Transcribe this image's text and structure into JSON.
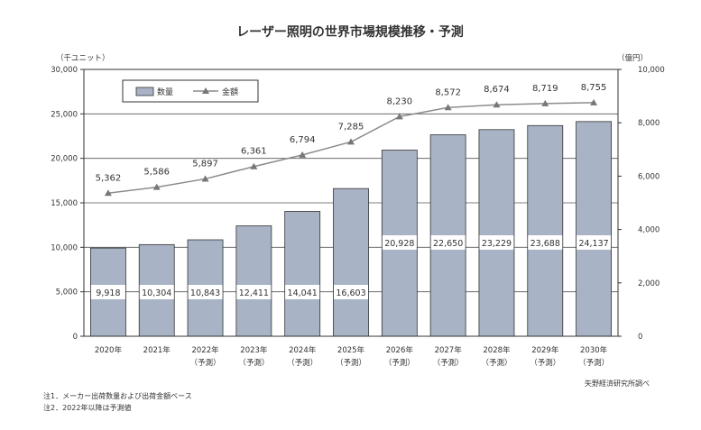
{
  "chart_data": {
    "type": "bar+line",
    "title": "レーザー照明の世界市場規模推移・予測",
    "left_axis_unit": "（千ユニット）",
    "right_axis_unit": "（億円）",
    "left_ylim": [
      0,
      30000
    ],
    "right_ylim": [
      0,
      10000
    ],
    "left_ticks": [
      "0",
      "5,000",
      "10,000",
      "15,000",
      "20,000",
      "25,000",
      "30,000"
    ],
    "right_ticks": [
      "0",
      "2,000",
      "4,000",
      "6,000",
      "8,000",
      "10,000"
    ],
    "categories": [
      {
        "year": "2020年",
        "sub": ""
      },
      {
        "year": "2021年",
        "sub": ""
      },
      {
        "year": "2022年",
        "sub": "（予測）"
      },
      {
        "year": "2023年",
        "sub": "（予測）"
      },
      {
        "year": "2024年",
        "sub": "（予測）"
      },
      {
        "year": "2025年",
        "sub": "（予測）"
      },
      {
        "year": "2026年",
        "sub": "（予測）"
      },
      {
        "year": "2027年",
        "sub": "（予測）"
      },
      {
        "year": "2028年",
        "sub": "（予測）"
      },
      {
        "year": "2029年",
        "sub": "（予測）"
      },
      {
        "year": "2030年",
        "sub": "（予測）"
      }
    ],
    "series": [
      {
        "name": "数量",
        "type": "bar",
        "axis": "left",
        "color": "#a9b3c6",
        "values": [
          9918,
          10304,
          10843,
          12411,
          14041,
          16603,
          20928,
          22650,
          23229,
          23688,
          24137
        ],
        "labels": [
          "9,918",
          "10,304",
          "10,843",
          "12,411",
          "14,041",
          "16,603",
          "20,928",
          "22,650",
          "23,229",
          "23,688",
          "24,137"
        ]
      },
      {
        "name": "金額",
        "type": "line",
        "axis": "right",
        "color": "#8c8c8c",
        "values": [
          5362,
          5586,
          5897,
          6361,
          6794,
          7285,
          8230,
          8572,
          8674,
          8719,
          8755
        ],
        "labels": [
          "5,362",
          "5,586",
          "5,897",
          "6,361",
          "6,794",
          "7,285",
          "8,230",
          "8,572",
          "8,674",
          "8,719",
          "8,755"
        ]
      }
    ],
    "legend_position": "top-left",
    "grid": true
  },
  "notes": {
    "note1": "注1．メーカー出荷数量および出荷金額ベース",
    "note2": "注2．2022年以降は予測値",
    "source": "矢野経済研究所調べ"
  }
}
